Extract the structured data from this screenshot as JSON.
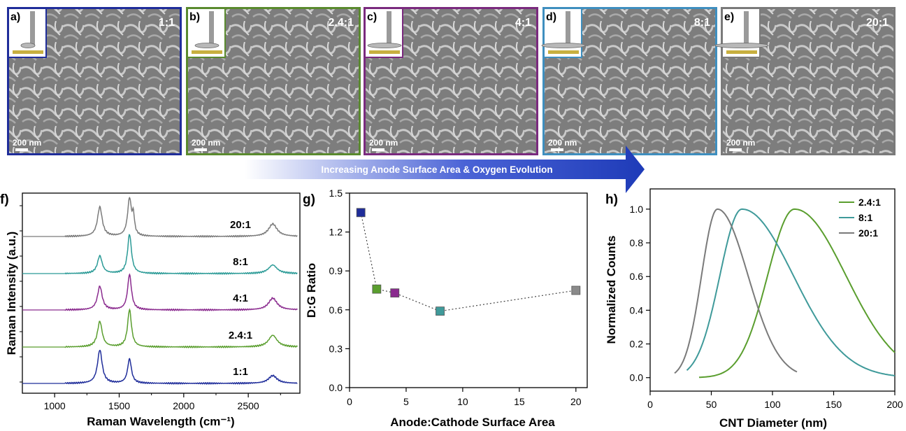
{
  "sem_panels": [
    {
      "letter": "a)",
      "ratio": "1:1",
      "scalebar": "200 nm",
      "color": "#1f2d9a"
    },
    {
      "letter": "b)",
      "ratio": "2.4:1",
      "scalebar": "200 nm",
      "color": "#5a8a2e"
    },
    {
      "letter": "c)",
      "ratio": "4:1",
      "scalebar": "200 nm",
      "color": "#7a2a7e"
    },
    {
      "letter": "d)",
      "ratio": "8:1",
      "scalebar": "200 nm",
      "color": "#3f8fbf"
    },
    {
      "letter": "e)",
      "ratio": "20:1",
      "scalebar": "200 nm",
      "color": "#7a7a7a"
    }
  ],
  "arrow_label": "Increasing Anode Surface Area & Oxygen Evolution",
  "chart_data": [
    {
      "panel": "f)",
      "type": "line",
      "xlabel": "Raman Wavelength (cm⁻¹)",
      "ylabel": "Raman Intensity (a.u.)",
      "xlim": [
        750,
        2900
      ],
      "xticks": [
        "1000",
        "1500",
        "2000",
        "2500"
      ],
      "peaks_x": [
        1350,
        1580,
        1610,
        2690
      ],
      "series": [
        {
          "name": "1:1",
          "color": "#1f2d9a",
          "peaks": [
            0.85,
            0.62,
            0.0,
            0.2
          ]
        },
        {
          "name": "2.4:1",
          "color": "#5a9e2e",
          "peaks": [
            0.65,
            0.95,
            0.0,
            0.3
          ]
        },
        {
          "name": "4:1",
          "color": "#8a2a8e",
          "peaks": [
            0.6,
            0.9,
            0.0,
            0.3
          ]
        },
        {
          "name": "8:1",
          "color": "#2a9a96",
          "peaks": [
            0.45,
            1.0,
            0.0,
            0.22
          ]
        },
        {
          "name": "20:1",
          "color": "#7a7a7a",
          "peaks": [
            0.75,
            0.95,
            0.45,
            0.32
          ]
        }
      ]
    },
    {
      "panel": "g)",
      "type": "scatter",
      "xlabel": "Anode:Cathode Surface Area",
      "ylabel": "D:G Ratio",
      "xlim": [
        0,
        21
      ],
      "ylim": [
        0,
        1.5
      ],
      "xticks": [
        "0",
        "5",
        "10",
        "15",
        "20"
      ],
      "yticks": [
        "0.0",
        "0.3",
        "0.6",
        "0.9",
        "1.2",
        "1.5"
      ],
      "points": [
        {
          "x": 1,
          "y": 1.35,
          "color": "#1f2d9a"
        },
        {
          "x": 2.4,
          "y": 0.76,
          "color": "#5a9e2e"
        },
        {
          "x": 4,
          "y": 0.73,
          "color": "#8a2a8e"
        },
        {
          "x": 8,
          "y": 0.59,
          "color": "#3f9a9a"
        },
        {
          "x": 20,
          "y": 0.75,
          "color": "#8a8a8a"
        }
      ]
    },
    {
      "panel": "h)",
      "type": "line",
      "xlabel": "CNT Diameter (nm)",
      "ylabel": "Normalized Counts",
      "xlim": [
        0,
        200
      ],
      "ylim": [
        -0.08,
        1.12
      ],
      "xticks": [
        "0",
        "50",
        "100",
        "150",
        "200"
      ],
      "yticks": [
        "0.0",
        "0.2",
        "0.4",
        "0.6",
        "0.8",
        "1.0"
      ],
      "legend_position": "top-right",
      "series": [
        {
          "name": "2.4:1",
          "color": "#5a9e2e",
          "x_start": 40,
          "x_end": 200,
          "peak": 118,
          "width_left": 22,
          "width_right": 42
        },
        {
          "name": "8:1",
          "color": "#3f9a9a",
          "x_start": 30,
          "x_end": 200,
          "peak": 75,
          "width_left": 18,
          "width_right": 42
        },
        {
          "name": "20:1",
          "color": "#7a7a7a",
          "x_start": 20,
          "x_end": 120,
          "peak": 55,
          "width_left": 13,
          "width_right": 25
        }
      ]
    }
  ]
}
